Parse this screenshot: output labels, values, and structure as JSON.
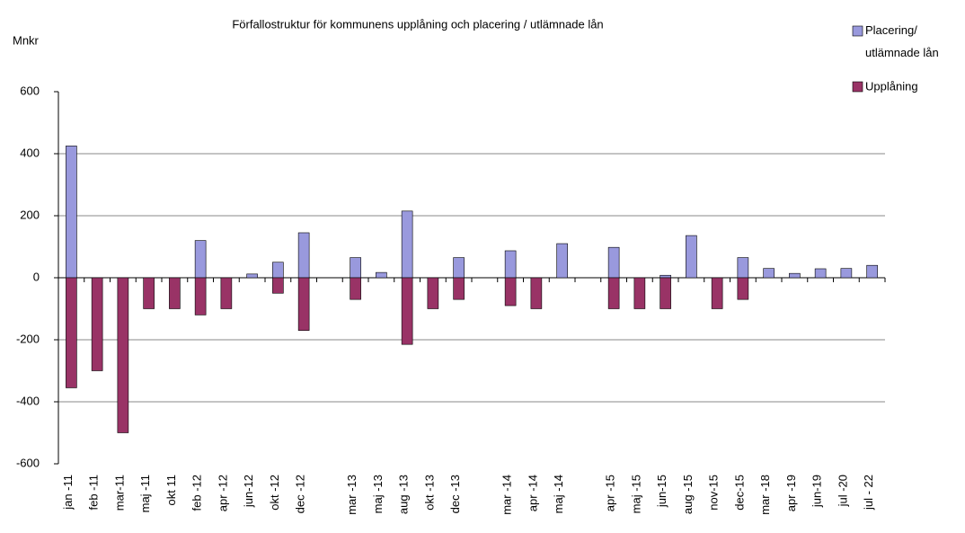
{
  "chart_data": {
    "type": "bar",
    "title": "Förfallostruktur för kommunens upplåning och placering / utlämnade lån",
    "y_label": "Mnkr",
    "categories": [
      "jan -11",
      "feb -11",
      "mar-11",
      "maj -11",
      "okt 11",
      "feb -12",
      "apr -12",
      "jun-12",
      "okt -12",
      "dec -12",
      null,
      "mar -13",
      "maj -13",
      "aug -13",
      "okt -13",
      "dec -13",
      null,
      "mar -14",
      "apr -14",
      "maj -14",
      null,
      "apr -15",
      "maj -15",
      "jun-15",
      "aug -15",
      "nov-15",
      "dec-15",
      "mar -18",
      "apr -19",
      "jun-19",
      "jul -20",
      "jul - 22"
    ],
    "series": [
      {
        "name": "Placering/ utlämnade lån",
        "color": "#9999dd",
        "values": [
          425,
          0,
          0,
          0,
          0,
          120,
          0,
          12,
          50,
          145,
          null,
          65,
          17,
          215,
          0,
          65,
          null,
          87,
          0,
          110,
          null,
          98,
          0,
          8,
          136,
          0,
          65,
          30,
          14,
          29,
          30,
          40
        ]
      },
      {
        "name": "Upplåning",
        "color": "#993366",
        "values": [
          -355,
          -300,
          -500,
          -100,
          -100,
          -120,
          -100,
          0,
          -50,
          -170,
          null,
          -70,
          0,
          -215,
          -100,
          -70,
          null,
          -90,
          -100,
          0,
          null,
          -100,
          -100,
          -100,
          0,
          -100,
          -70,
          0,
          0,
          0,
          0,
          0
        ]
      }
    ],
    "ylim": [
      -600,
      600
    ],
    "yticks": [
      -600,
      -400,
      -200,
      0,
      200,
      400,
      600
    ],
    "grid": true,
    "legend": "top-right"
  }
}
